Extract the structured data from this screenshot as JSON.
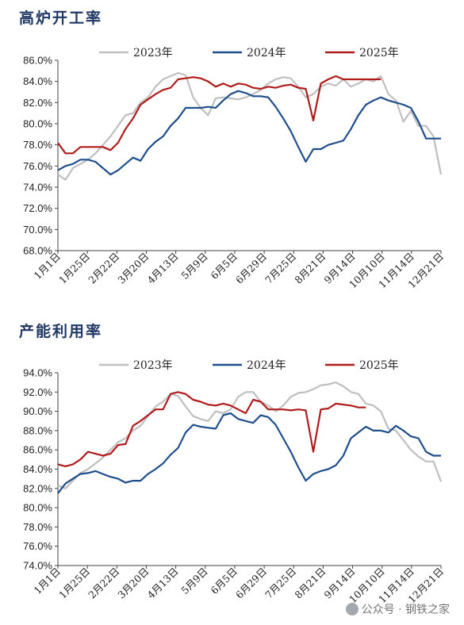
{
  "charts": [
    {
      "title": "高炉开工率",
      "legend": [
        "2023年",
        "2024年",
        "2025年"
      ],
      "colors": {
        "2023年": "#bfbfbf",
        "2024年": "#1f4e8c",
        "2025年": "#b01c1c"
      },
      "yticks": [
        "86.0%",
        "84.0%",
        "82.0%",
        "80.0%",
        "78.0%",
        "76.0%",
        "74.0%",
        "72.0%",
        "70.0%",
        "68.0%"
      ],
      "xticks": [
        "1月1日",
        "1月25日",
        "2月22日",
        "3月20日",
        "4月13日",
        "5月9日",
        "6月5日",
        "6月29日",
        "7月25日",
        "8月21日",
        "9月14日",
        "10月10日",
        "11月14日",
        "12月21日"
      ]
    },
    {
      "title": "产能利用率",
      "legend": [
        "2023年",
        "2024年",
        "2025年"
      ],
      "colors": {
        "2023年": "#bfbfbf",
        "2024年": "#1f4e8c",
        "2025年": "#b01c1c"
      },
      "yticks": [
        "94.0%",
        "92.0%",
        "90.0%",
        "88.0%",
        "86.0%",
        "84.0%",
        "82.0%",
        "80.0%",
        "78.0%",
        "76.0%",
        "74.0%"
      ],
      "xticks": [
        "1月1日",
        "1月25日",
        "2月22日",
        "3月20日",
        "4月13日",
        "5月9日",
        "6月5日",
        "6月29日",
        "7月25日",
        "8月21日",
        "9月14日",
        "10月10日",
        "11月14日",
        "12月21日"
      ]
    }
  ],
  "watermark": "公众号 · 钢铁之家",
  "chart_data": [
    {
      "type": "line",
      "title": "高炉开工率",
      "xlabel": "",
      "ylabel": "",
      "ylim": [
        68,
        86
      ],
      "x_range": [
        0,
        51
      ],
      "grid": false,
      "legend_position": "top",
      "series": [
        {
          "name": "2023年",
          "x": [
            0,
            1,
            2,
            3,
            4,
            5,
            6,
            7,
            8,
            9,
            10,
            11,
            12,
            13,
            14,
            15,
            16,
            17,
            18,
            19,
            20,
            21,
            22,
            23,
            24,
            25,
            26,
            27,
            28,
            29,
            30,
            31,
            32,
            33,
            34,
            35,
            36,
            37,
            38,
            39,
            40,
            41,
            42,
            43,
            44,
            45,
            46,
            47,
            48,
            49,
            50,
            51
          ],
          "y": [
            75.2,
            74.7,
            75.8,
            76.2,
            76.6,
            77.2,
            78,
            78.8,
            79.8,
            80.8,
            81,
            82,
            82.5,
            83.5,
            84.2,
            84.5,
            84.8,
            84.6,
            82.5,
            81.5,
            80.8,
            82.4,
            82.5,
            82.4,
            82.3,
            82.5,
            82.8,
            83.2,
            83.8,
            84.2,
            84.4,
            84.3,
            83.5,
            82.5,
            82.8,
            83.5,
            83.8,
            83.6,
            84.2,
            83.5,
            83.8,
            84.2,
            84,
            84.5,
            82.8,
            82.2,
            80.2,
            81.2,
            79.8,
            79.8,
            78.8,
            75.2
          ]
        },
        {
          "name": "2024年",
          "x": [
            0,
            1,
            2,
            3,
            4,
            5,
            6,
            7,
            8,
            9,
            10,
            11,
            12,
            13,
            14,
            15,
            16,
            17,
            18,
            19,
            20,
            21,
            22,
            23,
            24,
            25,
            26,
            27,
            28,
            29,
            30,
            31,
            32,
            33,
            34,
            35,
            36,
            37,
            38,
            39,
            40,
            41,
            42,
            43,
            44,
            45,
            46,
            47,
            48,
            49,
            50,
            51
          ],
          "y": [
            75.6,
            76,
            76.2,
            76.6,
            76.6,
            76.4,
            75.8,
            75.2,
            75.6,
            76.2,
            76.8,
            76.5,
            77.6,
            78.3,
            78.8,
            79.8,
            80.5,
            81.5,
            81.5,
            81.5,
            81.6,
            81.5,
            82.2,
            82.8,
            83.1,
            82.9,
            82.6,
            82.6,
            82.5,
            81.6,
            80.5,
            79.3,
            77.8,
            76.4,
            77.6,
            77.6,
            78,
            78.2,
            78.4,
            79.5,
            80.8,
            81.8,
            82.2,
            82.5,
            82.2,
            82,
            81.8,
            81.5,
            80.2,
            78.6,
            78.6,
            78.6
          ]
        },
        {
          "name": "2025年",
          "x": [
            0,
            1,
            2,
            3,
            4,
            5,
            6,
            7,
            8,
            9,
            10,
            11,
            12,
            13,
            14,
            15,
            16,
            17,
            18,
            19,
            20,
            21,
            22,
            23,
            24,
            25,
            26,
            27,
            28,
            29,
            30,
            31,
            32,
            33,
            34,
            35,
            36,
            37,
            38,
            39,
            40,
            41,
            42,
            43
          ],
          "y": [
            78.2,
            77.2,
            77.2,
            77.8,
            77.8,
            77.8,
            77.8,
            77.5,
            78.2,
            79.5,
            80.5,
            81.8,
            82.3,
            82.8,
            83.2,
            83.4,
            84.2,
            84.3,
            84.4,
            84.3,
            84,
            83.5,
            83.8,
            83.5,
            83.8,
            83.7,
            83.4,
            83.3,
            83.5,
            83.4,
            83.6,
            83.7,
            83.4,
            83.3,
            80.3,
            83.8,
            84.2,
            84.5,
            84.2,
            84.2,
            84.2,
            84.2,
            84.2,
            84.2
          ]
        }
      ]
    },
    {
      "type": "line",
      "title": "产能利用率",
      "xlabel": "",
      "ylabel": "",
      "ylim": [
        74,
        94
      ],
      "x_range": [
        0,
        51
      ],
      "grid": false,
      "legend_position": "top",
      "series": [
        {
          "name": "2023年",
          "x": [
            0,
            1,
            2,
            3,
            4,
            5,
            6,
            7,
            8,
            9,
            10,
            11,
            12,
            13,
            14,
            15,
            16,
            17,
            18,
            19,
            20,
            21,
            22,
            23,
            24,
            25,
            26,
            27,
            28,
            29,
            30,
            31,
            32,
            33,
            34,
            35,
            36,
            37,
            38,
            39,
            40,
            41,
            42,
            43,
            44,
            45,
            46,
            47,
            48,
            49,
            50,
            51
          ],
          "y": [
            82.3,
            82,
            82.8,
            83.6,
            84,
            84.6,
            85.2,
            86,
            86.8,
            87.2,
            88,
            88.5,
            89.5,
            90.5,
            91,
            91.8,
            91.6,
            90.5,
            89.5,
            89.2,
            89,
            90,
            89.8,
            90.2,
            91.5,
            92,
            92,
            91,
            90.6,
            90,
            90.6,
            91.5,
            91.9,
            92,
            92.3,
            92.7,
            92.8,
            93,
            92.6,
            92,
            91.8,
            90.8,
            90.6,
            90,
            88.2,
            88,
            87,
            86,
            85.3,
            84.8,
            84.8,
            82.7
          ]
        },
        {
          "name": "2024年",
          "x": [
            0,
            1,
            2,
            3,
            4,
            5,
            6,
            7,
            8,
            9,
            10,
            11,
            12,
            13,
            14,
            15,
            16,
            17,
            18,
            19,
            20,
            21,
            22,
            23,
            24,
            25,
            26,
            27,
            28,
            29,
            30,
            31,
            32,
            33,
            34,
            35,
            36,
            37,
            38,
            39,
            40,
            41,
            42,
            43,
            44,
            45,
            46,
            47,
            48,
            49,
            50,
            51
          ],
          "y": [
            81.5,
            82.5,
            83,
            83.5,
            83.6,
            83.8,
            83.5,
            83.2,
            83,
            82.6,
            82.8,
            82.8,
            83.5,
            84,
            84.6,
            85.5,
            86.2,
            87.8,
            88.6,
            88.4,
            88.3,
            88.2,
            89.6,
            89.8,
            89.2,
            89,
            88.8,
            89.6,
            89.4,
            88.6,
            87.2,
            85.8,
            84.2,
            82.8,
            83.5,
            83.8,
            84,
            84.4,
            85.4,
            87.2,
            87.8,
            88.4,
            88,
            88,
            87.8,
            88.5,
            88,
            87.4,
            87.2,
            85.8,
            85.4,
            85.4
          ]
        },
        {
          "name": "2025年",
          "x": [
            0,
            1,
            2,
            3,
            4,
            5,
            6,
            7,
            8,
            9,
            10,
            11,
            12,
            13,
            14,
            15,
            16,
            17,
            18,
            19,
            20,
            21,
            22,
            23,
            24,
            25,
            26,
            27,
            28,
            29,
            30,
            31,
            32,
            33,
            34,
            35,
            36,
            37,
            38,
            39,
            40,
            41
          ],
          "y": [
            84.5,
            84.3,
            84.5,
            85,
            85.8,
            85.6,
            85.4,
            85.6,
            86.5,
            86.6,
            88.5,
            89,
            89.6,
            90.2,
            90.2,
            91.8,
            92,
            91.8,
            91.2,
            91,
            90.7,
            90.6,
            90.8,
            90.6,
            90.2,
            89.8,
            91.2,
            91,
            90.2,
            90.2,
            90.2,
            90.1,
            90.2,
            90.1,
            85.8,
            90.2,
            90.3,
            90.8,
            90.7,
            90.6,
            90.4,
            90.4
          ]
        }
      ]
    }
  ]
}
